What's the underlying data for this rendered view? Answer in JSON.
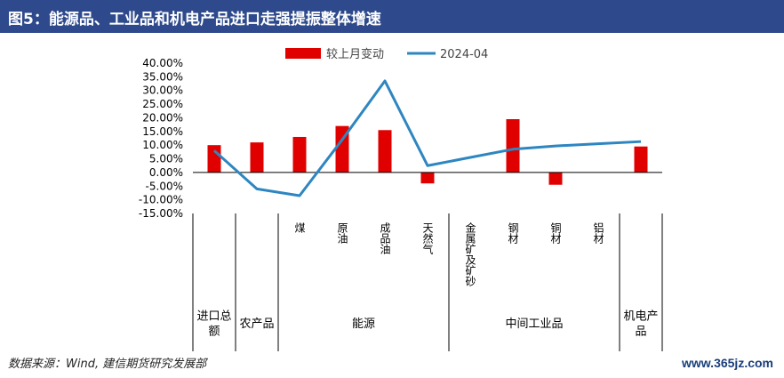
{
  "header": {
    "title": "图5：能源品、工业品和机电产品进口走强提振整体增速"
  },
  "source": "数据来源：Wind, 建信期货研究发展部",
  "watermark": "www.365jz.com",
  "colors": {
    "bar": "#e00000",
    "line": "#2e86c1",
    "title_bg": "#2e4a8c"
  },
  "chart_data": {
    "type": "bar",
    "title": "",
    "categories": [
      "进口总额",
      "农产品",
      "煤",
      "原油",
      "成品油",
      "天然气",
      "金属矿及矿砂",
      "钢材",
      "铜材",
      "铝材",
      "机电产品"
    ],
    "groups": [
      {
        "label": "进口总额",
        "span": 1
      },
      {
        "label": "农产品",
        "span": 1
      },
      {
        "label": "能源",
        "span": 4
      },
      {
        "label": "中间工业品",
        "span": 4
      },
      {
        "label": "机电产品",
        "span": 1
      }
    ],
    "series": [
      {
        "name": "较上月变动",
        "kind": "bar",
        "values": [
          10.0,
          11.0,
          13.0,
          17.0,
          15.5,
          -4.0,
          null,
          19.5,
          -4.5,
          null,
          9.5
        ]
      },
      {
        "name": "2024-04",
        "kind": "line",
        "values": [
          8.0,
          -6.0,
          -8.5,
          12.0,
          33.5,
          2.5,
          5.5,
          8.5,
          9.7,
          10.5,
          11.3
        ]
      }
    ],
    "ylim": [
      -15,
      40
    ],
    "yticks": [
      "40.00%",
      "35.00%",
      "30.00%",
      "25.00%",
      "20.00%",
      "15.00%",
      "10.00%",
      "5.00%",
      "0.00%",
      "-5.00%",
      "-10.00%",
      "-15.00%"
    ],
    "legend_position": "top",
    "grid": false
  }
}
